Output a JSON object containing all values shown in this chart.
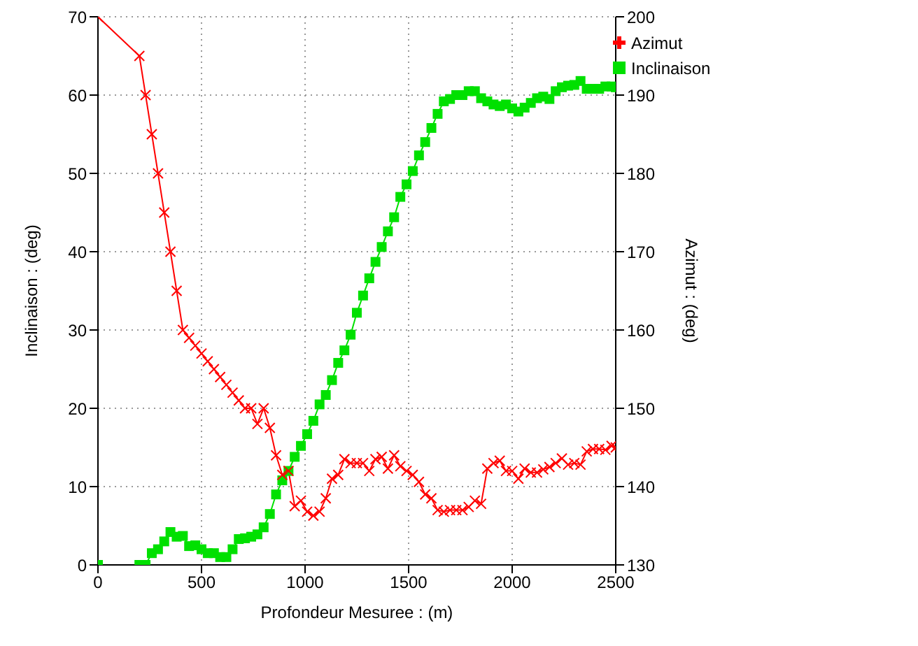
{
  "chart_data": {
    "type": "line",
    "xlabel": "Profondeur Mesuree : (m)",
    "ylabel": "Inclinaison : (deg)",
    "y2label": "Azimut : (deg)",
    "x": [
      0,
      200,
      230,
      260,
      290,
      320,
      350,
      380,
      410,
      440,
      470,
      500,
      530,
      560,
      590,
      620,
      650,
      680,
      710,
      740,
      770,
      800,
      830,
      860,
      890,
      920,
      950,
      980,
      1010,
      1040,
      1070,
      1100,
      1130,
      1160,
      1190,
      1220,
      1250,
      1280,
      1310,
      1340,
      1370,
      1400,
      1430,
      1460,
      1490,
      1520,
      1550,
      1580,
      1610,
      1640,
      1670,
      1700,
      1730,
      1760,
      1790,
      1820,
      1850,
      1880,
      1910,
      1940,
      1970,
      2000,
      2030,
      2060,
      2090,
      2120,
      2150,
      2180,
      2210,
      2240,
      2270,
      2300,
      2330,
      2360,
      2390,
      2420,
      2450,
      2480,
      2500
    ],
    "series": [
      {
        "name": "Inclinaison",
        "color": "#00e000",
        "marker": "square",
        "values": [
          0,
          0,
          0,
          1.5,
          2,
          3,
          4.2,
          3.6,
          3.7,
          2.4,
          2.5,
          2,
          1.5,
          1.5,
          1,
          1,
          2,
          3.3,
          3.4,
          3.6,
          3.9,
          4.8,
          6.5,
          9,
          10.8,
          12,
          13.8,
          15.2,
          16.7,
          18.4,
          20.5,
          21.7,
          23.6,
          25.8,
          27.4,
          29.4,
          32.2,
          34.4,
          36.6,
          38.7,
          40.6,
          42.6,
          44.4,
          47,
          48.6,
          50.3,
          52.3,
          54,
          55.8,
          57.6,
          59.2,
          59.5,
          60,
          60,
          60.5,
          60.5,
          59.6,
          59.2,
          58.8,
          58.6,
          58.8,
          58.3,
          57.9,
          58.4,
          59,
          59.6,
          59.8,
          59.5,
          60.5,
          61,
          61.2,
          61.3,
          61.8,
          60.8,
          60.8,
          60.8,
          61.1,
          61.1,
          61
        ]
      },
      {
        "name": "Azimut",
        "color": "#ff0000",
        "marker": "cross",
        "axis": "y2",
        "values": [
          200,
          195,
          190,
          185,
          180,
          175,
          170,
          165,
          160,
          159,
          158,
          157,
          156,
          155,
          154,
          153,
          152,
          151,
          150,
          150,
          148,
          150,
          147.5,
          144,
          141.5,
          142,
          137.5,
          138.2,
          136.8,
          136.3,
          136.8,
          138.5,
          141,
          141.5,
          143.5,
          143,
          143,
          143,
          142,
          143.5,
          143.8,
          142.3,
          144,
          142.6,
          142,
          141.5,
          140.6,
          139,
          138.5,
          137,
          136.8,
          137,
          137,
          137,
          137.4,
          138.2,
          137.8,
          142.3,
          143,
          143.3,
          142,
          142,
          141,
          142.3,
          141.8,
          141.8,
          142.2,
          142.5,
          143,
          143.6,
          142.8,
          143,
          142.8,
          144.5,
          144.8,
          144.8,
          144.7,
          145.2,
          145
        ]
      }
    ],
    "xlim": [
      0,
      2500
    ],
    "xticks": [
      0,
      500,
      1000,
      1500,
      2000,
      2500
    ],
    "ylim": [
      0,
      70
    ],
    "yticks": [
      0,
      10,
      20,
      30,
      40,
      50,
      60,
      70
    ],
    "y2lim": [
      130,
      200
    ],
    "y2ticks": [
      130,
      140,
      150,
      160,
      170,
      180,
      190,
      200
    ],
    "grid": true,
    "legend": "top right",
    "line_style": "solid"
  }
}
